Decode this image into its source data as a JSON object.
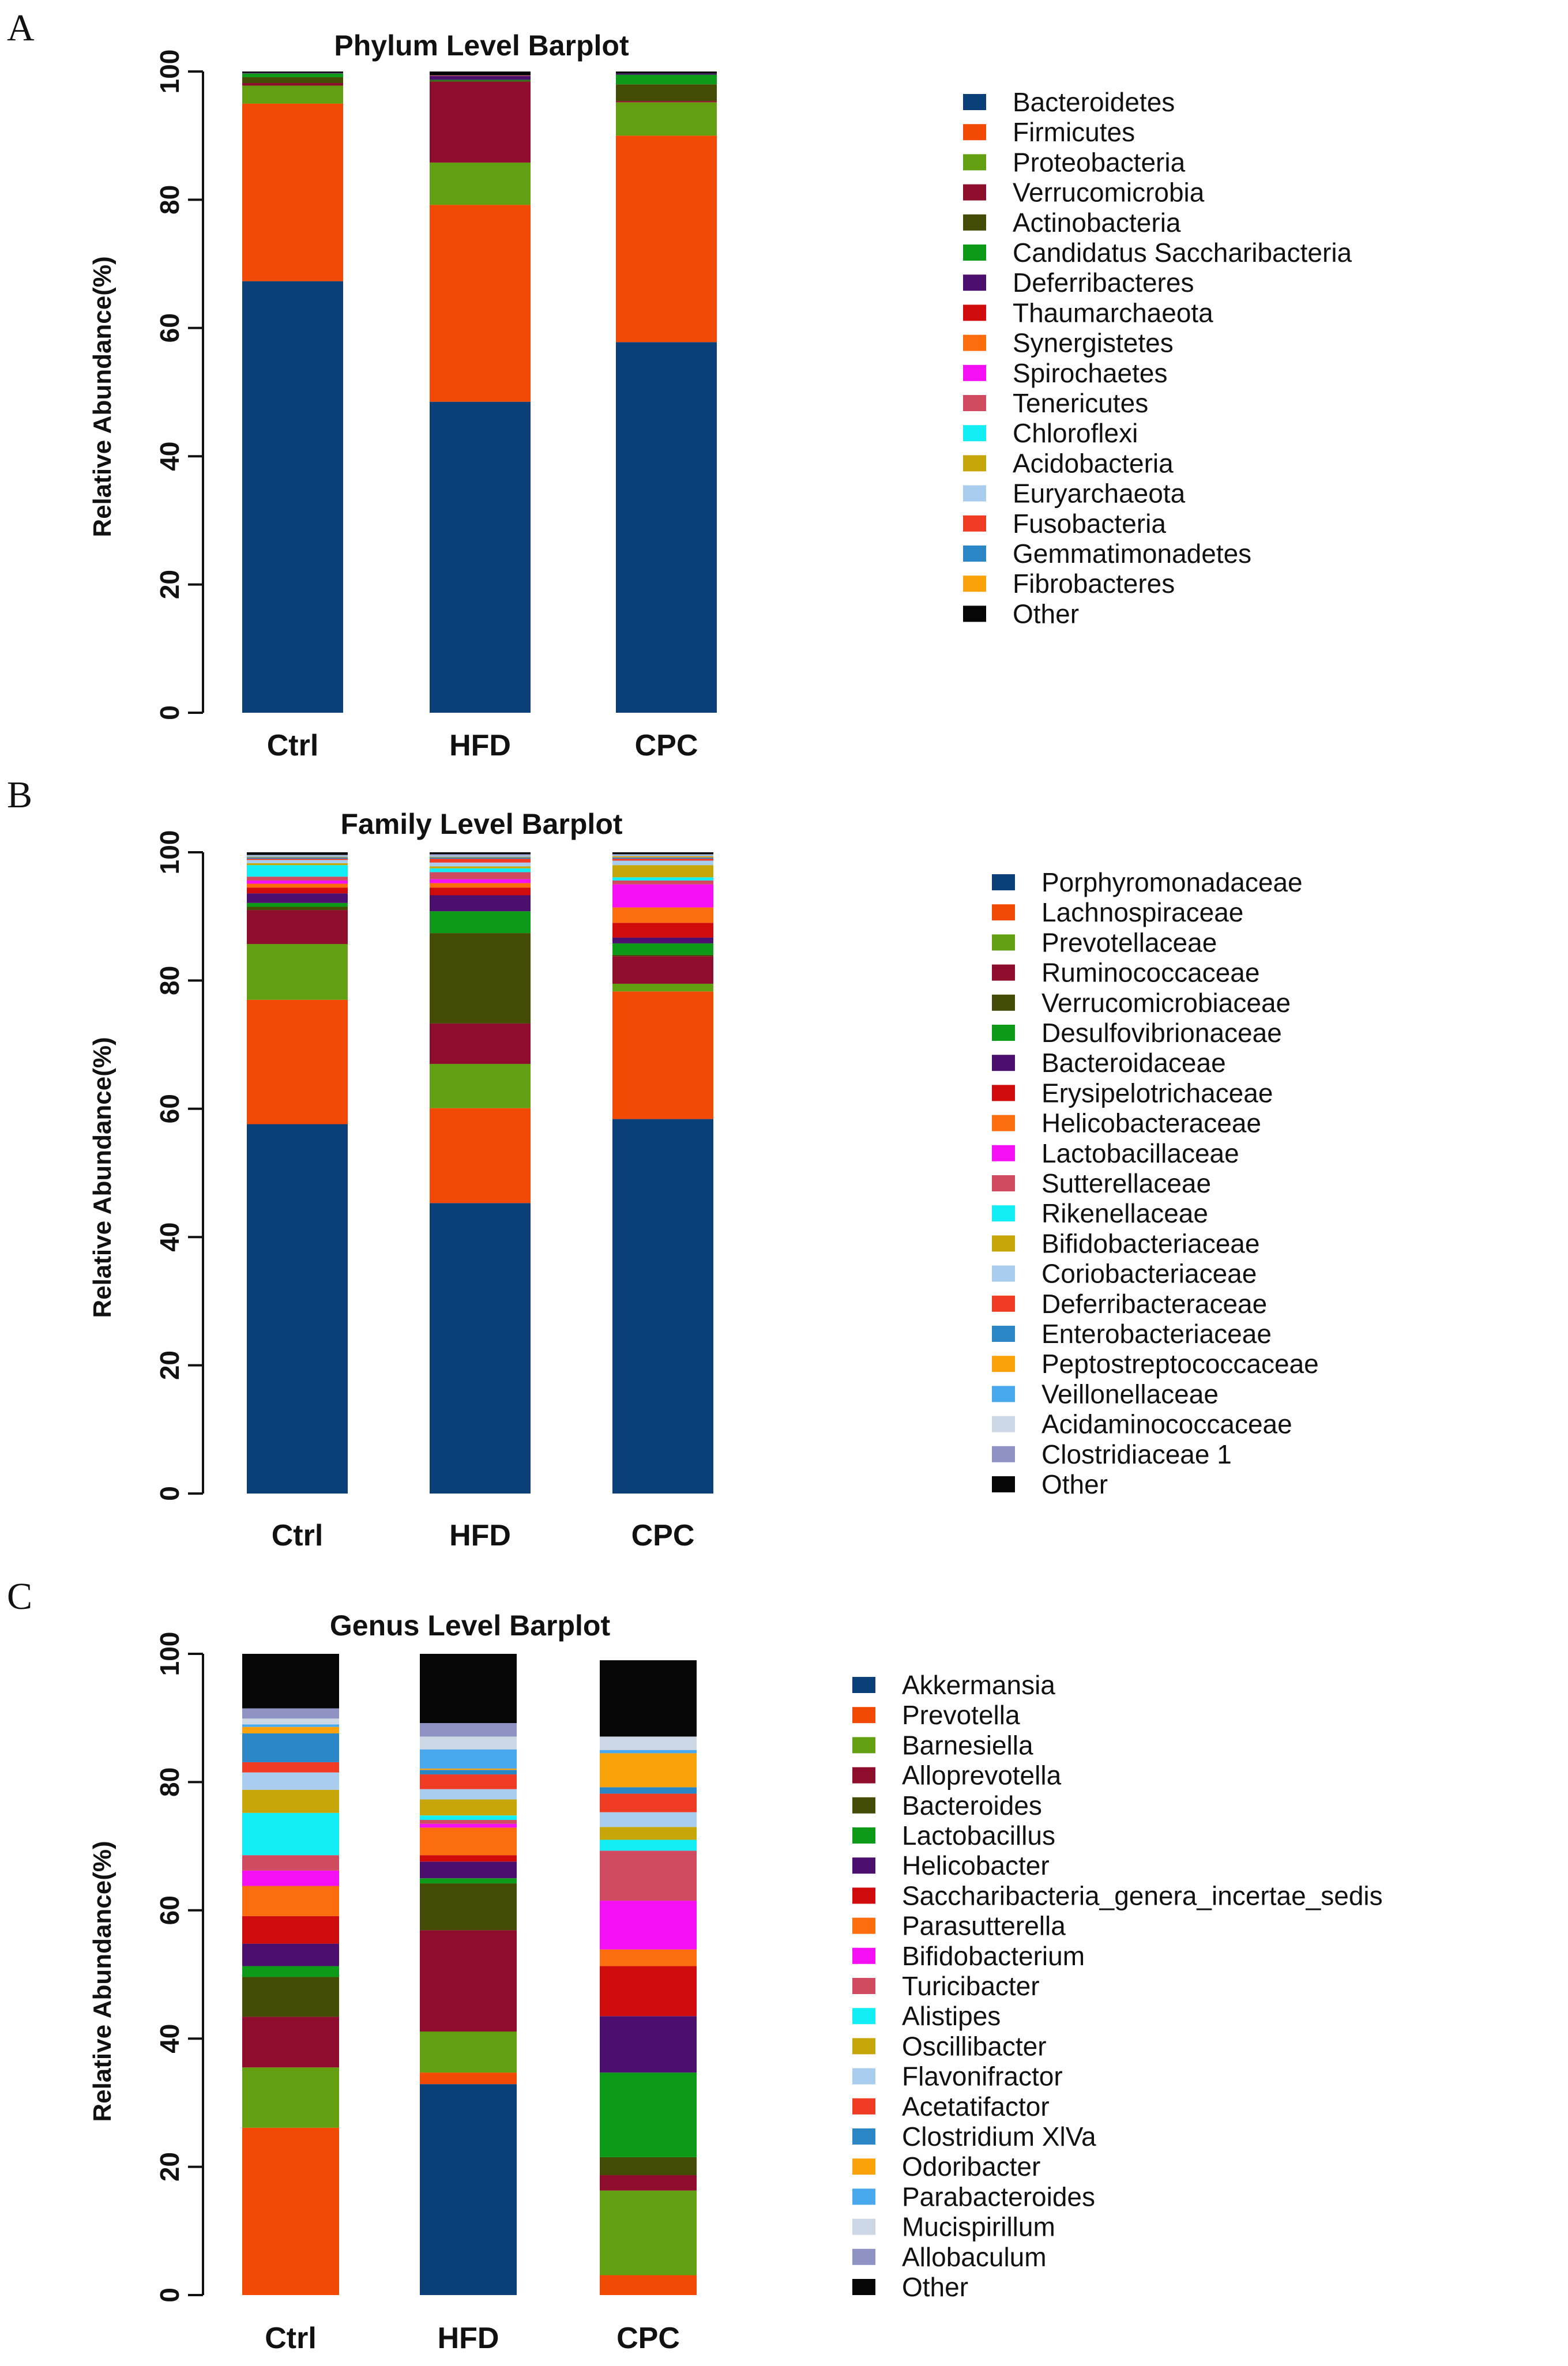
{
  "figure": {
    "panels": [
      "A",
      "B",
      "C"
    ]
  },
  "chart_data": [
    {
      "type": "bar",
      "stacked": true,
      "title": "Phylum Level Barplot",
      "ylabel": "Relative Abundance(%)",
      "xlabel": "",
      "ylim": [
        0,
        100
      ],
      "yticks": [
        0,
        20,
        40,
        60,
        80,
        100
      ],
      "categories": [
        "Ctrl",
        "HFD",
        "CPC"
      ],
      "legend_position": "right",
      "series": [
        {
          "name": "Bacteroidetes",
          "color": "#0b3f78",
          "values": [
            67.3,
            48.5,
            57.8
          ]
        },
        {
          "name": "Firmicutes",
          "color": "#f24a05",
          "values": [
            27.7,
            30.7,
            32.2
          ]
        },
        {
          "name": "Proteobacteria",
          "color": "#63a011",
          "values": [
            2.8,
            6.6,
            5.2
          ]
        },
        {
          "name": "Verrucomicrobia",
          "color": "#8e0c2c",
          "values": [
            0.4,
            12.6,
            0.2
          ]
        },
        {
          "name": "Actinobacteria",
          "color": "#444b05",
          "values": [
            0.9,
            0.2,
            2.6
          ]
        },
        {
          "name": "Candidatus Saccharibacteria",
          "color": "#0e9a19",
          "values": [
            0.6,
            0.1,
            1.5
          ]
        },
        {
          "name": "Deferribacteres",
          "color": "#4b0f6e",
          "values": [
            0.1,
            0.6,
            0.2
          ]
        },
        {
          "name": "Thaumarchaeota",
          "color": "#d00b0b",
          "values": [
            0.0,
            0.0,
            0.0
          ]
        },
        {
          "name": "Synergistetes",
          "color": "#fb6c0c",
          "values": [
            0.0,
            0.0,
            0.0
          ]
        },
        {
          "name": "Spirochaetes",
          "color": "#f50ff5",
          "values": [
            0.0,
            0.0,
            0.0
          ]
        },
        {
          "name": "Tenericutes",
          "color": "#d04a60",
          "values": [
            0.0,
            0.1,
            0.0
          ]
        },
        {
          "name": "Chloroflexi",
          "color": "#13eef5",
          "values": [
            0.0,
            0.0,
            0.0
          ]
        },
        {
          "name": "Acidobacteria",
          "color": "#c7a60a",
          "values": [
            0.0,
            0.0,
            0.0
          ]
        },
        {
          "name": "Euryarchaeota",
          "color": "#a9cdee",
          "values": [
            0.0,
            0.0,
            0.0
          ]
        },
        {
          "name": "Fusobacteria",
          "color": "#ef3b24",
          "values": [
            0.0,
            0.0,
            0.0
          ]
        },
        {
          "name": "Gemmatimonadetes",
          "color": "#2b86c6",
          "values": [
            0.0,
            0.0,
            0.0
          ]
        },
        {
          "name": "Fibrobacteres",
          "color": "#fba10a",
          "values": [
            0.0,
            0.0,
            0.0
          ]
        },
        {
          "name": "Other",
          "color": "#050505",
          "values": [
            0.2,
            0.6,
            0.3
          ]
        }
      ]
    },
    {
      "type": "bar",
      "stacked": true,
      "title": "Family Level Barplot",
      "ylabel": "Relative Abundance(%)",
      "xlabel": "",
      "ylim": [
        0,
        100
      ],
      "yticks": [
        0,
        20,
        40,
        60,
        80,
        100
      ],
      "categories": [
        "Ctrl",
        "HFD",
        "CPC"
      ],
      "legend_position": "right",
      "series": [
        {
          "name": "Porphyromonadaceae",
          "color": "#0b3f78",
          "values": [
            57.6,
            45.3,
            58.4
          ]
        },
        {
          "name": "Lachnospiraceae",
          "color": "#f24a05",
          "values": [
            19.4,
            14.8,
            19.9
          ]
        },
        {
          "name": "Prevotellaceae",
          "color": "#63a011",
          "values": [
            8.7,
            6.9,
            1.2
          ]
        },
        {
          "name": "Ruminococcaceae",
          "color": "#8e0c2c",
          "values": [
            5.3,
            6.3,
            4.3
          ]
        },
        {
          "name": "Verrucomicrobiaceae",
          "color": "#444b05",
          "values": [
            0.5,
            14.1,
            0.2
          ]
        },
        {
          "name": "Desulfovibrionaceae",
          "color": "#0e9a19",
          "values": [
            0.6,
            3.4,
            1.8
          ]
        },
        {
          "name": "Bacteroidaceae",
          "color": "#4b0f6e",
          "values": [
            1.5,
            2.5,
            0.9
          ]
        },
        {
          "name": "Erysipelotrichaceae",
          "color": "#d00b0b",
          "values": [
            0.9,
            1.2,
            2.3
          ]
        },
        {
          "name": "Helicobacteraceae",
          "color": "#fb6c0c",
          "values": [
            0.6,
            0.7,
            2.4
          ]
        },
        {
          "name": "Lactobacillaceae",
          "color": "#f50ff5",
          "values": [
            0.5,
            0.6,
            3.6
          ]
        },
        {
          "name": "Sutterellaceae",
          "color": "#d04a60",
          "values": [
            0.6,
            1.1,
            0.6
          ]
        },
        {
          "name": "Rikenellaceae",
          "color": "#13eef5",
          "values": [
            1.8,
            0.6,
            0.5
          ]
        },
        {
          "name": "Bifidobacteriaceae",
          "color": "#c7a60a",
          "values": [
            0.3,
            0.3,
            1.9
          ]
        },
        {
          "name": "Coriobacteriaceae",
          "color": "#a9cdee",
          "values": [
            0.5,
            0.6,
            0.7
          ]
        },
        {
          "name": "Deferribacteraceae",
          "color": "#ef3b24",
          "values": [
            0.2,
            0.6,
            0.3
          ]
        },
        {
          "name": "Enterobacteriaceae",
          "color": "#2b86c6",
          "values": [
            0.2,
            0.2,
            0.2
          ]
        },
        {
          "name": "Peptostreptococcaceae",
          "color": "#fba10a",
          "values": [
            0.1,
            0.1,
            0.2
          ]
        },
        {
          "name": "Veillonellaceae",
          "color": "#4aa8ee",
          "values": [
            0.1,
            0.1,
            0.1
          ]
        },
        {
          "name": "Acidaminococcaceae",
          "color": "#cbd7e4",
          "values": [
            0.1,
            0.1,
            0.1
          ]
        },
        {
          "name": "Clostridiaceae 1",
          "color": "#8f93c3",
          "values": [
            0.1,
            0.2,
            0.1
          ]
        },
        {
          "name": "Other",
          "color": "#050505",
          "values": [
            0.4,
            0.3,
            0.3
          ]
        }
      ]
    },
    {
      "type": "bar",
      "stacked": true,
      "title": "Genus Level Barplot",
      "ylabel": "Relative Abundance(%)",
      "xlabel": "",
      "ylim": [
        0,
        100
      ],
      "yticks": [
        0,
        20,
        40,
        60,
        80,
        100
      ],
      "categories": [
        "Ctrl",
        "HFD",
        "CPC"
      ],
      "legend_position": "right",
      "series": [
        {
          "name": "Akkermansia",
          "color": "#0b3f78",
          "values": [
            0.0,
            32.9,
            0.0
          ]
        },
        {
          "name": "Prevotella",
          "color": "#f24a05",
          "values": [
            26.1,
            1.8,
            3.1
          ]
        },
        {
          "name": "Barnesiella",
          "color": "#63a011",
          "values": [
            9.4,
            6.4,
            13.2
          ]
        },
        {
          "name": "Alloprevotella",
          "color": "#8e0c2c",
          "values": [
            7.9,
            15.8,
            2.4
          ]
        },
        {
          "name": "Bacteroides",
          "color": "#444b05",
          "values": [
            6.2,
            7.3,
            2.8
          ]
        },
        {
          "name": "Lactobacillus",
          "color": "#0e9a19",
          "values": [
            1.7,
            0.8,
            13.2
          ]
        },
        {
          "name": "Helicobacter",
          "color": "#4b0f6e",
          "values": [
            3.5,
            2.6,
            8.8
          ]
        },
        {
          "name": "Saccharibacteria_genera_incertae_sedis",
          "color": "#d00b0b",
          "values": [
            4.3,
            1.0,
            7.8
          ]
        },
        {
          "name": "Parasutterella",
          "color": "#fb6c0c",
          "values": [
            4.7,
            4.3,
            2.6
          ]
        },
        {
          "name": "Bifidobacterium",
          "color": "#f50ff5",
          "values": [
            2.4,
            0.6,
            7.6
          ]
        },
        {
          "name": "Turicibacter",
          "color": "#d04a60",
          "values": [
            2.4,
            0.6,
            7.8
          ]
        },
        {
          "name": "Alistipes",
          "color": "#13eef5",
          "values": [
            6.6,
            0.7,
            1.7
          ]
        },
        {
          "name": "Oscillibacter",
          "color": "#c7a60a",
          "values": [
            3.6,
            2.5,
            2.0
          ]
        },
        {
          "name": "Flavonifractor",
          "color": "#a9cdee",
          "values": [
            2.7,
            1.6,
            2.3
          ]
        },
        {
          "name": "Acetatifactor",
          "color": "#ef3b24",
          "values": [
            1.6,
            2.3,
            2.9
          ]
        },
        {
          "name": "Clostridium XlVa",
          "color": "#2b86c6",
          "values": [
            4.5,
            0.7,
            1.0
          ]
        },
        {
          "name": "Odoribacter",
          "color": "#fba10a",
          "values": [
            1.0,
            0.2,
            5.3
          ]
        },
        {
          "name": "Parabacteroides",
          "color": "#4aa8ee",
          "values": [
            0.4,
            3.0,
            0.5
          ]
        },
        {
          "name": "Mucispirillum",
          "color": "#cbd7e4",
          "values": [
            0.9,
            2.0,
            2.1
          ]
        },
        {
          "name": "Allobaculum",
          "color": "#8f93c3",
          "values": [
            1.6,
            2.1,
            0.0
          ]
        },
        {
          "name": "Other",
          "color": "#050505",
          "values": [
            8.5,
            10.8,
            11.9
          ]
        }
      ]
    }
  ]
}
